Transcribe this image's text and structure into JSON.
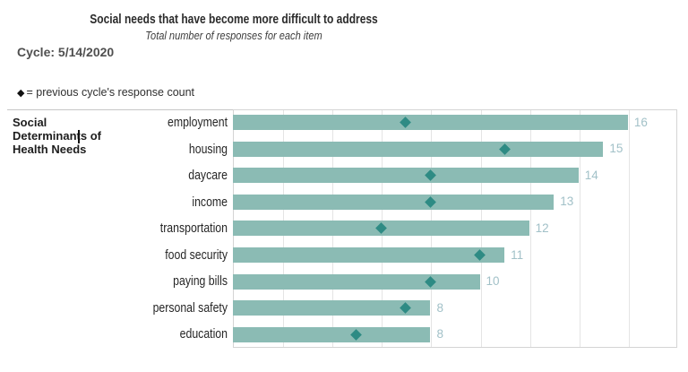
{
  "header": {
    "title": "Social needs that have become more difficult to address",
    "subtitle": "Total number of responses for each item",
    "cycle_label": "Cycle:",
    "cycle_value": "5/14/2020",
    "legend_marker": "◆",
    "legend_text": "= previous cycle's response count"
  },
  "row_group_label": {
    "line1": "Social",
    "line2": "Determinants of",
    "line3": "Health Needs"
  },
  "chart_data": {
    "type": "bar",
    "orientation": "horizontal",
    "title": "Social needs that have become more difficult to address",
    "subtitle": "Total number of responses for each item",
    "categories": [
      "employment",
      "housing",
      "daycare",
      "income",
      "transportation",
      "food security",
      "paying bills",
      "personal safety",
      "education"
    ],
    "series": [
      {
        "name": "current cycle response count (bar)",
        "values": [
          16,
          15,
          14,
          13,
          12,
          11,
          10,
          8,
          8
        ]
      },
      {
        "name": "previous cycle's response count (diamond marker)",
        "values": [
          7,
          11,
          8,
          8,
          6,
          10,
          8,
          7,
          5
        ]
      }
    ],
    "data_labels": [
      16,
      15,
      14,
      13,
      12,
      11,
      10,
      8,
      8
    ],
    "xlim": [
      0,
      18
    ],
    "gridline_step": 2,
    "grid": true,
    "axis_tick_labels_visible": false,
    "legend_position": "none",
    "group_axis_label": "Social Determinants of Health Needs",
    "colors": {
      "bar": "#8bbbb4",
      "marker": "#2e8b84",
      "value_label": "#a2c1c8",
      "gridline": "#e4e4e4",
      "plot_border": "#d4d4d4"
    }
  }
}
